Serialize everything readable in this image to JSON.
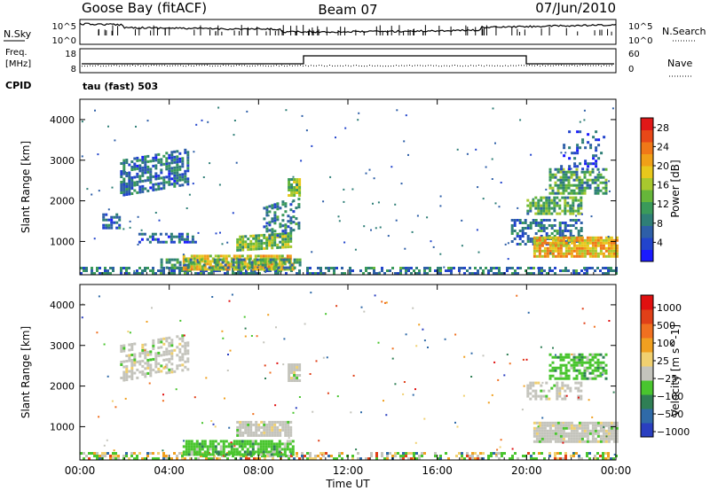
{
  "header": {
    "station": "Goose Bay (fitACF)",
    "beam": "Beam 07",
    "date": "07/Jun/2010"
  },
  "noise_panel": {
    "left_label": "N.Sky",
    "right_label": "N.Search",
    "left_ticks": [
      "10^5",
      "10^0"
    ],
    "right_ticks": [
      "10^5",
      "10^0"
    ]
  },
  "freq_panel": {
    "left_label_1": "Freq.",
    "left_label_2": "[MHz]",
    "left_ticks": [
      "18",
      "8"
    ],
    "right_label": "Nave",
    "right_ticks": [
      "60",
      "0"
    ],
    "cpid_label": "CPID",
    "cpid_text": "tau (fast) 503"
  },
  "chart_data": [
    {
      "type": "heatmap",
      "quantity": "Power",
      "ylabel": "Slant Range [km]",
      "ylim": [
        180,
        4500
      ],
      "y_ticks": [
        1000,
        2000,
        3000,
        4000
      ],
      "x_ticks": [
        "00:00",
        "04:00",
        "08:00",
        "12:00",
        "16:00",
        "20:00",
        "00:00"
      ],
      "xlim_hours": [
        0,
        24
      ],
      "colorbar": {
        "label": "Power [dB]",
        "range": [
          0,
          30
        ],
        "ticks": [
          "4",
          "8",
          "12",
          "16",
          "20",
          "24",
          "28"
        ],
        "colors": [
          "#1a1aff",
          "#2244cc",
          "#2e5fa8",
          "#2f7f77",
          "#3a9a5a",
          "#66b63a",
          "#a8c82e",
          "#e8c81c",
          "#f0a018",
          "#f07818",
          "#e84818",
          "#e01818"
        ]
      },
      "regions": [
        {
          "t0": 0.0,
          "t1": 24.0,
          "r0": 180,
          "r1": 320,
          "v": 8,
          "density": 0.55
        },
        {
          "t0": 4.6,
          "t1": 9.6,
          "r0": 280,
          "r1": 620,
          "v": 18,
          "density": 0.85
        },
        {
          "t0": 3.6,
          "t1": 9.8,
          "r0": 320,
          "r1": 560,
          "v": 10,
          "density": 0.5
        },
        {
          "t0": 1.0,
          "t1": 1.8,
          "r0": 1300,
          "r1": 1650,
          "v": 6,
          "density": 0.6
        },
        {
          "t0": 1.8,
          "t1": 4.8,
          "r0": 2100,
          "r1": 3000,
          "v": 7,
          "density": 0.65,
          "slope": 280
        },
        {
          "t0": 2.5,
          "t1": 5.2,
          "r0": 950,
          "r1": 1150,
          "v": 6,
          "density": 0.55
        },
        {
          "t0": 7.0,
          "t1": 9.5,
          "r0": 750,
          "r1": 1100,
          "v": 14,
          "density": 0.85,
          "slope": 90
        },
        {
          "t0": 8.2,
          "t1": 9.8,
          "r0": 1000,
          "r1": 1800,
          "v": 8,
          "density": 0.5,
          "slope": 300
        },
        {
          "t0": 9.3,
          "t1": 9.8,
          "r0": 2100,
          "r1": 2500,
          "v": 14,
          "density": 0.9
        },
        {
          "t0": 19.3,
          "t1": 22.5,
          "r0": 900,
          "r1": 1500,
          "v": 8,
          "density": 0.55
        },
        {
          "t0": 20.3,
          "t1": 24.0,
          "r0": 600,
          "r1": 1100,
          "v": 20,
          "density": 0.9
        },
        {
          "t0": 20.0,
          "t1": 22.5,
          "r0": 1650,
          "r1": 2100,
          "v": 12,
          "density": 0.65
        },
        {
          "t0": 21.0,
          "t1": 23.6,
          "r0": 2150,
          "r1": 2750,
          "v": 11,
          "density": 0.6
        },
        {
          "t0": 21.5,
          "t1": 23.5,
          "r0": 2750,
          "r1": 3700,
          "v": 5,
          "density": 0.2
        }
      ]
    },
    {
      "type": "heatmap",
      "quantity": "Velocity",
      "ylabel": "Slant Range [km]",
      "ylim": [
        180,
        4500
      ],
      "y_ticks": [
        1000,
        2000,
        3000,
        4000
      ],
      "x_ticks": [
        "00:00",
        "04:00",
        "08:00",
        "12:00",
        "16:00",
        "20:00",
        "00:00"
      ],
      "xlabel": "Time UT",
      "xlim_hours": [
        0,
        24
      ],
      "colorbar": {
        "label": "Velocity [m s^-1]",
        "ticks": [
          "1000",
          "500",
          "100",
          "25",
          "−25",
          "−100",
          "−500",
          "−1000"
        ],
        "colors": [
          "#2a3fc0",
          "#2f6aa8",
          "#2f7f55",
          "#49c52e",
          "#c4c4bc",
          "#f0d070",
          "#f0a020",
          "#f07020",
          "#e04018",
          "#e01010"
        ]
      },
      "regions": [
        {
          "t0": 0.0,
          "t1": 24.0,
          "r0": 180,
          "r1": 320,
          "v": "mixed",
          "density": 0.5
        },
        {
          "t0": 4.6,
          "t1": 9.6,
          "r0": 280,
          "r1": 620,
          "v": "green",
          "density": 0.8
        },
        {
          "t0": 1.8,
          "t1": 4.8,
          "r0": 2100,
          "r1": 3000,
          "v": "grey",
          "density": 0.55,
          "slope": 280
        },
        {
          "t0": 7.0,
          "t1": 9.5,
          "r0": 750,
          "r1": 1100,
          "v": "grey",
          "density": 0.85
        },
        {
          "t0": 9.3,
          "t1": 9.8,
          "r0": 2100,
          "r1": 2500,
          "v": "grey",
          "density": 0.85
        },
        {
          "t0": 20.3,
          "t1": 24.0,
          "r0": 600,
          "r1": 1100,
          "v": "grey",
          "density": 0.9
        },
        {
          "t0": 21.0,
          "t1": 23.6,
          "r0": 2150,
          "r1": 2750,
          "v": "green",
          "density": 0.6
        },
        {
          "t0": 20.0,
          "t1": 22.5,
          "r0": 1650,
          "r1": 2100,
          "v": "grey",
          "density": 0.6
        }
      ]
    }
  ]
}
